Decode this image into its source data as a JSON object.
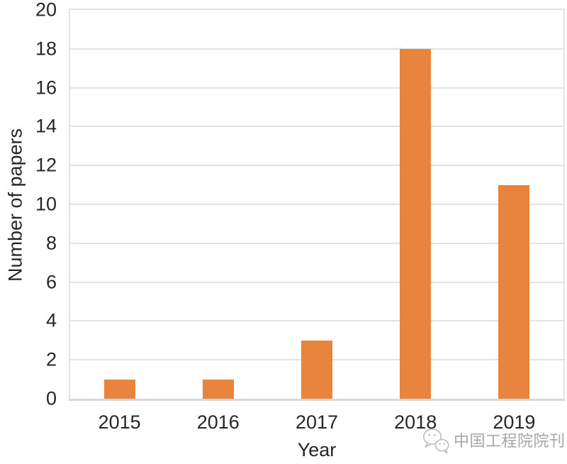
{
  "chart_data": {
    "type": "bar",
    "title": "",
    "categories": [
      "2015",
      "2016",
      "2017",
      "2018",
      "2019"
    ],
    "values": [
      1,
      1,
      3,
      18,
      11
    ],
    "xlabel": "Year",
    "ylabel": "Number of papers",
    "ylim": [
      0,
      20
    ],
    "yticks": [
      0,
      2,
      4,
      6,
      8,
      10,
      12,
      14,
      16,
      18,
      20
    ],
    "grid": "horizontal",
    "legend": "none",
    "bar_color": "#E8843E",
    "gridline_color": "#E2E2E9",
    "axis_line_color": "#D7D7DE",
    "tick_label_color": "#262626"
  },
  "watermark": {
    "icon": "wechat-icon",
    "label": "中国工程院院刊",
    "color": "#A6A6A6"
  }
}
